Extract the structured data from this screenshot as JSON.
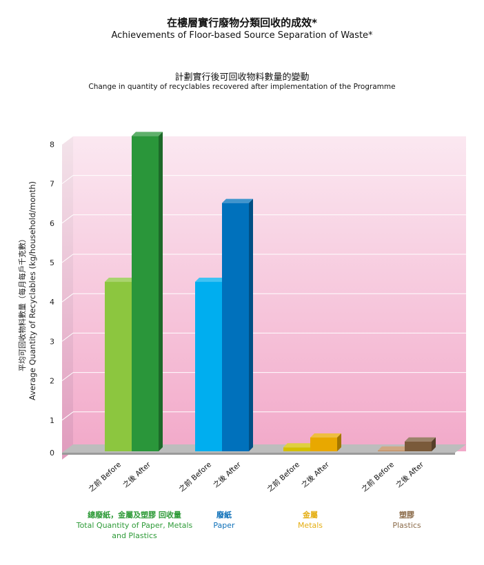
{
  "header": {
    "title_zh": "在樓層實行廢物分類回收的成效*",
    "title_en": "Achievements of Floor-based Source Separation of Waste*",
    "subtitle_zh": "計劃實行後可回收物料數量的變動",
    "subtitle_en": "Change in quantity of recyclables recovered after implementation of the Programme"
  },
  "chart_data": {
    "type": "bar",
    "ylabel_zh": "平均可回收物料數量（每月每戶千克數）",
    "ylabel_en": "Average Quantity of Recyclables (kg/household/month)",
    "ylim": [
      0,
      8
    ],
    "yticks": [
      "0",
      "1",
      "2",
      "3",
      "4",
      "5",
      "6",
      "7",
      "8"
    ],
    "series_labels": {
      "before": "之前 Before",
      "after": "之後 After"
    },
    "groups": [
      {
        "name_zh": "總廢紙，金屬及塑膠 回收量",
        "name_en": "Total Quantity of Paper, Metals and Plastics",
        "before": 4.3,
        "after": 8.0,
        "color_before": "#8cc63f",
        "color_after": "#2a963a"
      },
      {
        "name_zh": "廢紙",
        "name_en": "Paper",
        "before": 4.3,
        "after": 6.3,
        "color_before": "#00aeef",
        "color_after": "#0071bc"
      },
      {
        "name_zh": "金屬",
        "name_en": "Metals",
        "before": 0.1,
        "after": 0.35,
        "color_before": "#d4c000",
        "color_after": "#e8a800"
      },
      {
        "name_zh": "塑膠",
        "name_en": "Plastics",
        "before": 0.02,
        "after": 0.25,
        "color_before": "#c08a5a",
        "color_after": "#7a5a3a"
      }
    ]
  }
}
